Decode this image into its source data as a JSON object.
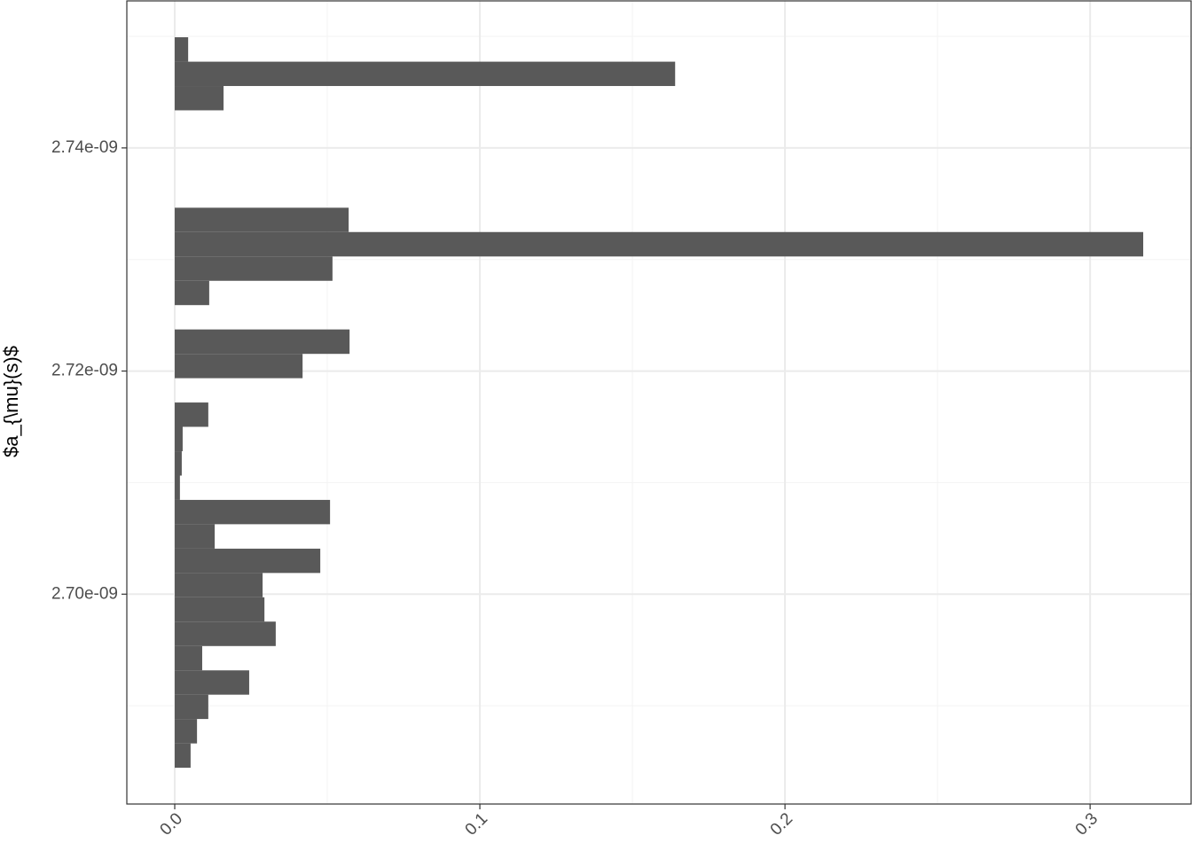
{
  "chart_data": {
    "type": "histogram",
    "orientation": "horizontal",
    "y_label": "$a_{\\mu}(s)$",
    "color": "#595959",
    "bins": [
      2.68444e-09,
      2.68662e-09,
      2.68881e-09,
      2.69099e-09,
      2.69317e-09,
      2.69535e-09,
      2.69754e-09,
      2.69972e-09,
      2.7019e-09,
      2.70408e-09,
      2.70627e-09,
      2.70845e-09,
      2.71063e-09,
      2.71281e-09,
      2.715e-09,
      2.71718e-09,
      2.71936e-09,
      2.72154e-09,
      2.72373e-09,
      2.72591e-09,
      2.72809e-09,
      2.73027e-09,
      2.73246e-09,
      2.73464e-09,
      2.73682e-09,
      2.739e-09,
      2.74119e-09,
      2.74337e-09,
      2.74555e-09,
      2.74773e-09,
      2.74992e-09
    ],
    "values": [
      0.0052,
      0.0073,
      0.011,
      0.0244,
      0.009,
      0.0331,
      0.0294,
      0.0288,
      0.0477,
      0.0131,
      0.0509,
      0.0017,
      0.0023,
      0.0026,
      0.011,
      0,
      0.0419,
      0.0573,
      0,
      0.0113,
      0.0517,
      0.3174,
      0.057,
      0,
      0,
      0,
      0,
      0.016,
      0.164,
      0.0044
    ],
    "xlim": [
      -0.0157,
      0.3331
    ],
    "xticks": [
      {
        "value": 0,
        "label": "0.0"
      },
      0.1,
      0.2,
      0.3
    ],
    "xminor": [
      0.05,
      0.15,
      0.25
    ],
    "ylim": [
      2.68119e-09,
      2.75318e-09
    ],
    "yticks": [
      {
        "value": 2.7e-09,
        "label": "2.70e-09"
      },
      {
        "value": 2.72e-09,
        "label": "2.72e-09"
      },
      {
        "value": 2.74e-09,
        "label": "2.74e-09"
      }
    ],
    "yminor": [
      2.69e-09,
      2.71e-09,
      2.73e-09,
      2.75e-09
    ],
    "grid": true
  }
}
